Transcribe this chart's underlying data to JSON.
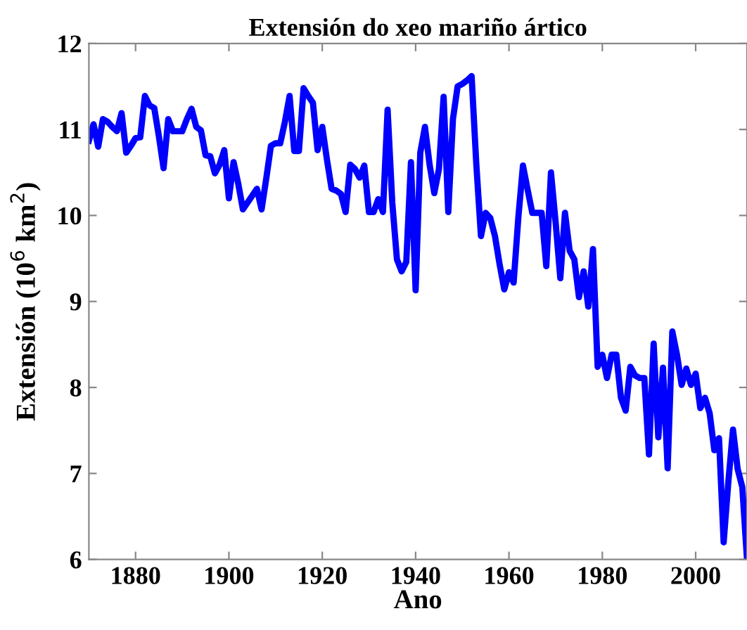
{
  "chart_data": {
    "type": "line",
    "title": "Extensión do xeo mariño ártico",
    "xlabel": "Ano",
    "ylabel": "Extensión (10$^{6}$ km$^{2}$)",
    "x": [
      1870,
      1871,
      1872,
      1873,
      1874,
      1875,
      1876,
      1877,
      1878,
      1879,
      1880,
      1881,
      1882,
      1883,
      1884,
      1885,
      1886,
      1887,
      1888,
      1889,
      1890,
      1891,
      1892,
      1893,
      1894,
      1895,
      1896,
      1897,
      1898,
      1899,
      1900,
      1901,
      1902,
      1903,
      1904,
      1905,
      1906,
      1907,
      1908,
      1909,
      1910,
      1911,
      1912,
      1913,
      1914,
      1915,
      1916,
      1917,
      1918,
      1919,
      1920,
      1921,
      1922,
      1923,
      1924,
      1925,
      1926,
      1927,
      1928,
      1929,
      1930,
      1931,
      1932,
      1933,
      1934,
      1935,
      1936,
      1937,
      1938,
      1939,
      1940,
      1941,
      1942,
      1943,
      1944,
      1945,
      1946,
      1947,
      1948,
      1949,
      1950,
      1951,
      1952,
      1953,
      1954,
      1955,
      1956,
      1957,
      1958,
      1959,
      1960,
      1961,
      1962,
      1963,
      1964,
      1965,
      1966,
      1967,
      1968,
      1969,
      1970,
      1971,
      1972,
      1973,
      1974,
      1975,
      1976,
      1977,
      1978,
      1979,
      1980,
      1981,
      1982,
      1983,
      1984,
      1985,
      1986,
      1987,
      1988,
      1989,
      1990,
      1991,
      1992,
      1993,
      1994,
      1995,
      1996,
      1997,
      1998,
      1999,
      2000,
      2001,
      2002,
      2003,
      2004,
      2005,
      2006,
      2007,
      2008,
      2009,
      2010,
      2011
    ],
    "series": [
      {
        "color": "#0000ff",
        "values": [
          10.87,
          11.06,
          10.8,
          11.12,
          11.09,
          11.03,
          10.98,
          11.19,
          10.73,
          10.81,
          10.9,
          10.91,
          11.39,
          11.28,
          11.25,
          10.92,
          10.55,
          11.12,
          10.98,
          10.98,
          10.98,
          11.12,
          11.24,
          11.03,
          10.99,
          10.7,
          10.69,
          10.49,
          10.59,
          10.76,
          10.2,
          10.62,
          10.37,
          10.07,
          10.15,
          10.23,
          10.31,
          10.07,
          10.43,
          10.81,
          10.84,
          10.84,
          11.09,
          11.39,
          10.75,
          10.75,
          11.48,
          11.39,
          11.31,
          10.76,
          11.03,
          10.65,
          10.31,
          10.29,
          10.25,
          10.04,
          10.59,
          10.54,
          10.44,
          10.58,
          10.04,
          10.04,
          10.19,
          10.04,
          11.23,
          10.15,
          9.49,
          9.35,
          9.46,
          10.62,
          9.13,
          10.73,
          11.03,
          10.59,
          10.26,
          10.54,
          11.38,
          10.04,
          11.12,
          11.5,
          11.53,
          11.57,
          11.62,
          10.6,
          9.76,
          10.03,
          9.97,
          9.76,
          9.43,
          9.14,
          9.34,
          9.22,
          9.97,
          10.58,
          10.3,
          10.03,
          10.03,
          10.03,
          9.41,
          10.5,
          9.92,
          9.27,
          10.03,
          9.59,
          9.49,
          9.05,
          9.35,
          8.94,
          9.61,
          8.24,
          8.38,
          8.11,
          8.38,
          8.38,
          7.88,
          7.73,
          8.24,
          8.14,
          8.11,
          8.11,
          7.22,
          8.51,
          7.42,
          8.23,
          7.06,
          8.65,
          8.38,
          8.03,
          8.22,
          8.03,
          8.16,
          7.76,
          7.88,
          7.7,
          7.27,
          7.41,
          6.2,
          6.9,
          7.51,
          7.05,
          6.84,
          6.0
        ]
      }
    ],
    "xlim": [
      1870,
      2011
    ],
    "xticks": [
      1880,
      1900,
      1920,
      1940,
      1960,
      1980,
      2000
    ],
    "ylim": [
      6,
      12
    ],
    "yticks": [
      6,
      7,
      8,
      9,
      10,
      11,
      12
    ],
    "grid": false,
    "line_style": "solid",
    "marker": "none"
  }
}
